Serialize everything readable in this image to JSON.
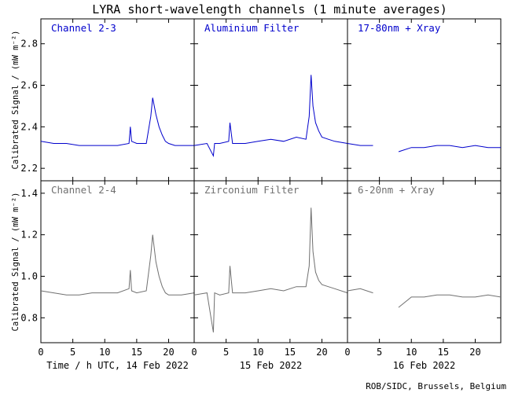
{
  "chart_data": {
    "type": "line",
    "title": "LYRA short-wavelength channels (1 minute averages)",
    "ylabel": "Calibrated Signal / (mW m⁻²)",
    "footer": "ROB/SIDC, Brussels, Belgium",
    "x_axis": {
      "label": "Time / h UTC",
      "ticks": [
        0,
        5,
        10,
        15,
        20
      ],
      "range_per_day": [
        0,
        24
      ],
      "days": [
        "14 Feb 2022",
        "15 Feb 2022",
        "16 Feb 2022"
      ]
    },
    "rows": [
      {
        "ylim": [
          2.14,
          2.92
        ],
        "yticks": [
          "2.2",
          "2.4",
          "2.6",
          "2.8"
        ],
        "ytick_values": [
          2.2,
          2.4,
          2.6,
          2.8
        ],
        "color": "#0000cc",
        "panels": [
          {
            "name": "Channel 2-3",
            "x": [
              0,
              2,
              4,
              6,
              8,
              10,
              12,
              13.8,
              14,
              14.2,
              15,
              16.5,
              17.2,
              17.5,
              18,
              18.5,
              19,
              19.5,
              20,
              21,
              22,
              24
            ],
            "y": [
              2.33,
              2.32,
              2.32,
              2.31,
              2.31,
              2.31,
              2.31,
              2.32,
              2.4,
              2.33,
              2.32,
              2.32,
              2.45,
              2.54,
              2.46,
              2.4,
              2.36,
              2.33,
              2.32,
              2.31,
              2.31,
              2.31
            ]
          },
          {
            "name": "Aluminium Filter",
            "x": [
              0,
              2,
              3,
              3.2,
              4,
              5.4,
              5.6,
              6,
              8,
              10,
              12,
              14,
              16,
              17.5,
              18,
              18.3,
              18.6,
              19,
              19.5,
              20,
              21,
              22,
              24
            ],
            "y": [
              2.31,
              2.32,
              2.26,
              2.32,
              2.32,
              2.33,
              2.42,
              2.32,
              2.32,
              2.33,
              2.34,
              2.33,
              2.35,
              2.34,
              2.45,
              2.65,
              2.5,
              2.42,
              2.38,
              2.35,
              2.34,
              2.33,
              2.32
            ]
          },
          {
            "name": "17-80nm + Xray",
            "x": [
              0,
              2,
              4,
              7.5,
              8,
              10,
              12,
              14,
              16,
              18,
              20,
              22,
              24
            ],
            "y": [
              2.32,
              2.31,
              2.31,
              null,
              2.28,
              2.3,
              2.3,
              2.31,
              2.31,
              2.3,
              2.31,
              2.3,
              2.3
            ]
          }
        ]
      },
      {
        "ylim": [
          0.68,
          1.46
        ],
        "yticks": [
          "0.8",
          "1.0",
          "1.2",
          "1.4"
        ],
        "ytick_values": [
          0.8,
          1.0,
          1.2,
          1.4
        ],
        "color": "#707070",
        "panels": [
          {
            "name": "Channel 2-4",
            "x": [
              0,
              2,
              4,
              6,
              8,
              10,
              12,
              13.8,
              14,
              14.2,
              15,
              16.5,
              17.2,
              17.5,
              18,
              18.5,
              19,
              19.5,
              20,
              21,
              22,
              24
            ],
            "y": [
              0.93,
              0.92,
              0.91,
              0.91,
              0.92,
              0.92,
              0.92,
              0.94,
              1.03,
              0.93,
              0.92,
              0.93,
              1.1,
              1.2,
              1.07,
              1.0,
              0.95,
              0.92,
              0.91,
              0.91,
              0.91,
              0.92
            ]
          },
          {
            "name": "Zirconium Filter",
            "x": [
              0,
              2,
              3,
              3.2,
              4,
              5.4,
              5.6,
              6,
              8,
              10,
              12,
              14,
              16,
              17.5,
              18,
              18.3,
              18.6,
              19,
              19.5,
              20,
              21,
              22,
              24
            ],
            "y": [
              0.91,
              0.92,
              0.73,
              0.92,
              0.91,
              0.92,
              1.05,
              0.92,
              0.92,
              0.93,
              0.94,
              0.93,
              0.95,
              0.95,
              1.05,
              1.33,
              1.12,
              1.02,
              0.98,
              0.96,
              0.95,
              0.94,
              0.92
            ]
          },
          {
            "name": "6-20nm + Xray",
            "x": [
              0,
              2,
              4,
              7.5,
              8,
              10,
              12,
              14,
              16,
              18,
              20,
              22,
              24
            ],
            "y": [
              0.93,
              0.94,
              0.92,
              null,
              0.85,
              0.9,
              0.9,
              0.91,
              0.91,
              0.9,
              0.9,
              0.91,
              0.9
            ]
          }
        ]
      }
    ]
  }
}
